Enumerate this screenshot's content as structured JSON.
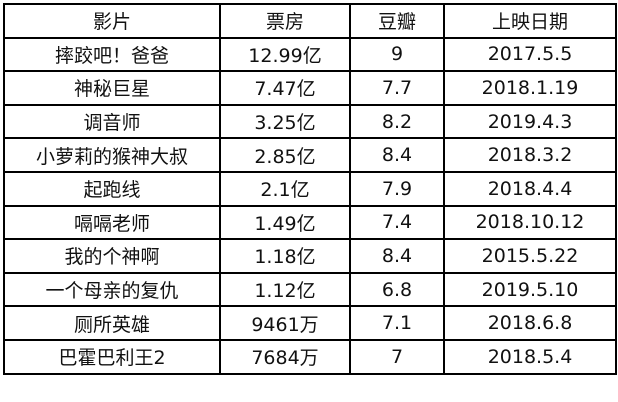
{
  "table": {
    "headers": [
      "影片",
      "票房",
      "豆瓣",
      "上映日期"
    ],
    "rows": [
      [
        "摔跤吧！爸爸",
        "12.99亿",
        "9",
        "2017.5.5"
      ],
      [
        "神秘巨星",
        "7.47亿",
        "7.7",
        "2018.1.19"
      ],
      [
        "调音师",
        "3.25亿",
        "8.2",
        "2019.4.3"
      ],
      [
        "小萝莉的猴神大叔",
        "2.85亿",
        "8.4",
        "2018.3.2"
      ],
      [
        "起跑线",
        "2.1亿",
        "7.9",
        "2018.4.4"
      ],
      [
        "嗝嗝老师",
        "1.49亿",
        "7.4",
        "2018.10.12"
      ],
      [
        "我的个神啊",
        "1.18亿",
        "8.4",
        "2015.5.22"
      ],
      [
        "一个母亲的复仇",
        "1.12亿",
        "6.8",
        "2019.5.10"
      ],
      [
        "厕所英雄",
        "9461万",
        "7.1",
        "2018.6.8"
      ],
      [
        "巴霍巴利王2",
        "7684万",
        "7",
        "2018.5.4"
      ]
    ]
  }
}
